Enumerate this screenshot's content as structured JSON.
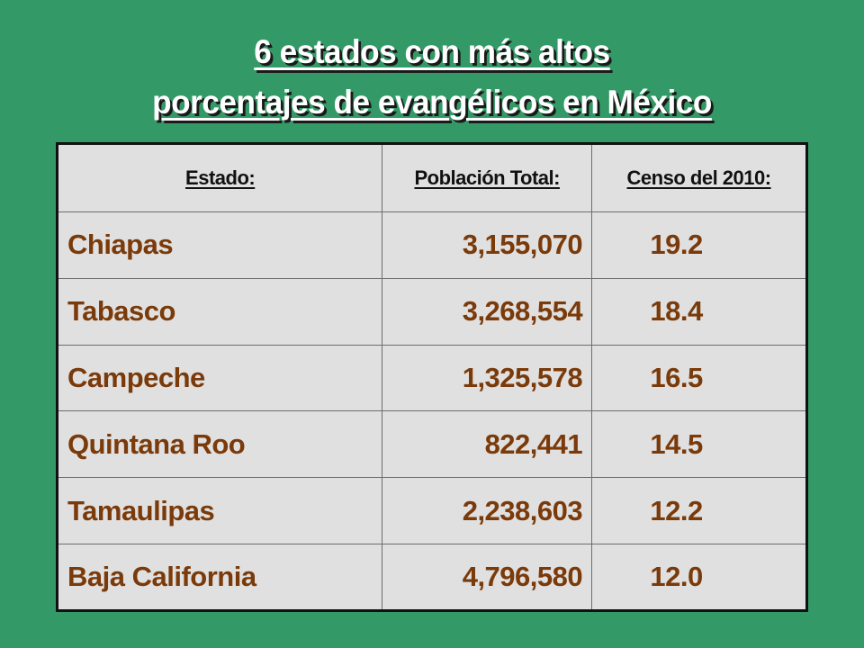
{
  "title": {
    "line1": "6 estados con más altos",
    "line2": "porcentajes de evangélicos en México"
  },
  "table": {
    "headers": {
      "state": "Estado:",
      "population": "Población Total:",
      "census": "Censo del 2010:"
    },
    "rows": [
      {
        "state": "Chiapas",
        "population": "3,155,070",
        "census": "19.2"
      },
      {
        "state": "Tabasco",
        "population": "3,268,554",
        "census": "18.4"
      },
      {
        "state": "Campeche",
        "population": "1,325,578",
        "census": "16.5"
      },
      {
        "state": "Quintana Roo",
        "population": "822,441",
        "census": "14.5"
      },
      {
        "state": "Tamaulipas",
        "population": "2,238,603",
        "census": "12.2"
      },
      {
        "state": "Baja California",
        "population": "4,796,580",
        "census": "12.0"
      }
    ]
  },
  "colors": {
    "background": "#339966",
    "table_background": "#e0e0e0",
    "cell_text": "#7a3a0a",
    "header_text": "#111111",
    "title_text": "#ffffff"
  }
}
